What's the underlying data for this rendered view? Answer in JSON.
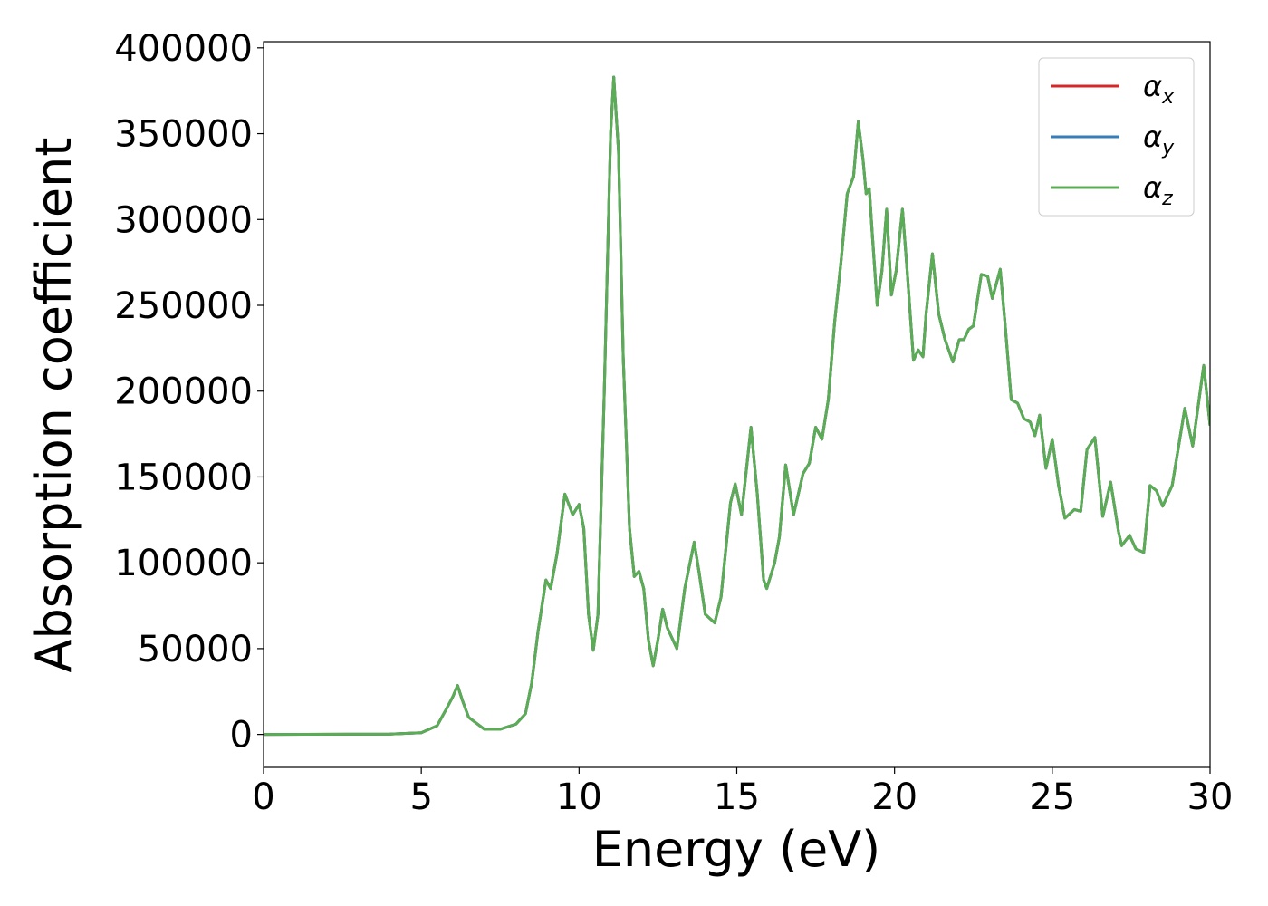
{
  "chart_data": {
    "type": "line",
    "xlabel": "Energy (eV)",
    "ylabel": "Absorption coefficient",
    "xlim": [
      0,
      30
    ],
    "xticks": [
      0,
      5,
      10,
      15,
      20,
      25,
      30
    ],
    "ylim": [
      -19200,
      403600
    ],
    "yticks": [
      0,
      50000,
      100000,
      150000,
      200000,
      250000,
      300000,
      350000,
      400000
    ],
    "grid": false,
    "legend": "upper right",
    "x": [
      0,
      4,
      5,
      5.5,
      5.8,
      6.0,
      6.15,
      6.3,
      6.5,
      7.0,
      7.5,
      8.0,
      8.3,
      8.5,
      8.7,
      8.95,
      9.1,
      9.3,
      9.55,
      9.8,
      10.0,
      10.15,
      10.3,
      10.45,
      10.6,
      10.8,
      11.0,
      11.1,
      11.25,
      11.4,
      11.6,
      11.75,
      11.9,
      12.05,
      12.2,
      12.35,
      12.5,
      12.65,
      12.8,
      13.1,
      13.35,
      13.65,
      13.8,
      14.0,
      14.3,
      14.5,
      14.8,
      14.95,
      15.15,
      15.45,
      15.65,
      15.85,
      15.95,
      16.2,
      16.35,
      16.55,
      16.8,
      17.1,
      17.3,
      17.5,
      17.7,
      17.9,
      18.1,
      18.3,
      18.5,
      18.7,
      18.85,
      19.0,
      19.1,
      19.2,
      19.3,
      19.45,
      19.6,
      19.75,
      19.9,
      20.05,
      20.25,
      20.4,
      20.6,
      20.75,
      20.9,
      21.0,
      21.2,
      21.4,
      21.6,
      21.85,
      22.05,
      22.2,
      22.35,
      22.5,
      22.75,
      22.95,
      23.1,
      23.35,
      23.5,
      23.7,
      23.9,
      24.1,
      24.3,
      24.45,
      24.6,
      24.8,
      25.0,
      25.2,
      25.4,
      25.7,
      25.9,
      26.1,
      26.35,
      26.6,
      26.85,
      27.1,
      27.2,
      27.45,
      27.65,
      27.9,
      28.1,
      28.3,
      28.5,
      28.8,
      29.2,
      29.45,
      29.8,
      30.0
    ],
    "series": [
      {
        "name": "αx",
        "color": "#d62728",
        "values": [
          0,
          200,
          1000,
          5000,
          15000,
          22000,
          28500,
          20000,
          10000,
          3000,
          3000,
          6000,
          12000,
          30000,
          60000,
          90000,
          85000,
          105000,
          140000,
          128000,
          134000,
          120000,
          70000,
          49000,
          70000,
          200000,
          350000,
          383000,
          340000,
          220000,
          120000,
          92000,
          95000,
          85000,
          55000,
          40000,
          55000,
          73000,
          62000,
          50000,
          85000,
          112000,
          95000,
          70000,
          65000,
          80000,
          135000,
          146000,
          128000,
          179000,
          140000,
          90000,
          85000,
          100000,
          115000,
          157000,
          128000,
          152000,
          158000,
          179000,
          172000,
          195000,
          240000,
          275000,
          315000,
          325000,
          357000,
          335000,
          315000,
          318000,
          290000,
          250000,
          270000,
          306000,
          256000,
          270000,
          306000,
          270000,
          218000,
          224000,
          220000,
          245000,
          280000,
          245000,
          230000,
          217000,
          230000,
          230000,
          236000,
          238000,
          268000,
          267000,
          254000,
          271000,
          240000,
          195000,
          193000,
          184000,
          182000,
          174000,
          186000,
          155000,
          172000,
          145000,
          126000,
          131000,
          130000,
          166000,
          173000,
          127000,
          147000,
          118000,
          110000,
          116000,
          108000,
          106000,
          145000,
          142000,
          133000,
          145000,
          190000,
          168000,
          215000,
          180000
        ]
      },
      {
        "name": "αy",
        "color": "#377eb8",
        "values": [
          0,
          200,
          1000,
          5000,
          15000,
          22000,
          28500,
          20000,
          10000,
          3000,
          3000,
          6000,
          12000,
          30000,
          60000,
          90000,
          85000,
          105000,
          140000,
          128000,
          134000,
          120000,
          70000,
          49000,
          70000,
          200000,
          350000,
          383000,
          340000,
          220000,
          120000,
          92000,
          95000,
          85000,
          55000,
          40000,
          55000,
          73000,
          62000,
          50000,
          85000,
          112000,
          95000,
          70000,
          65000,
          80000,
          135000,
          146000,
          128000,
          179000,
          140000,
          90000,
          85000,
          100000,
          115000,
          157000,
          128000,
          152000,
          158000,
          179000,
          172000,
          195000,
          240000,
          275000,
          315000,
          325000,
          357000,
          335000,
          315000,
          318000,
          290000,
          250000,
          270000,
          306000,
          256000,
          270000,
          306000,
          270000,
          218000,
          224000,
          220000,
          245000,
          280000,
          245000,
          230000,
          217000,
          230000,
          230000,
          236000,
          238000,
          268000,
          267000,
          254000,
          271000,
          240000,
          195000,
          193000,
          184000,
          182000,
          174000,
          186000,
          155000,
          172000,
          145000,
          126000,
          131000,
          130000,
          166000,
          173000,
          127000,
          147000,
          118000,
          110000,
          116000,
          108000,
          106000,
          145000,
          142000,
          133000,
          145000,
          190000,
          168000,
          215000,
          180000
        ]
      },
      {
        "name": "αz",
        "color": "#5aac55",
        "values": [
          0,
          200,
          1000,
          5000,
          15000,
          22000,
          28500,
          20000,
          10000,
          3000,
          3000,
          6000,
          12000,
          30000,
          60000,
          90000,
          85000,
          105000,
          140000,
          128000,
          134000,
          120000,
          70000,
          49000,
          70000,
          200000,
          350000,
          383000,
          340000,
          220000,
          120000,
          92000,
          95000,
          85000,
          55000,
          40000,
          55000,
          73000,
          62000,
          50000,
          85000,
          112000,
          95000,
          70000,
          65000,
          80000,
          135000,
          146000,
          128000,
          179000,
          140000,
          90000,
          85000,
          100000,
          115000,
          157000,
          128000,
          152000,
          158000,
          179000,
          172000,
          195000,
          240000,
          275000,
          315000,
          325000,
          357000,
          335000,
          315000,
          318000,
          290000,
          250000,
          270000,
          306000,
          256000,
          270000,
          306000,
          270000,
          218000,
          224000,
          220000,
          245000,
          280000,
          245000,
          230000,
          217000,
          230000,
          230000,
          236000,
          238000,
          268000,
          267000,
          254000,
          271000,
          240000,
          195000,
          193000,
          184000,
          182000,
          174000,
          186000,
          155000,
          172000,
          145000,
          126000,
          131000,
          130000,
          166000,
          173000,
          127000,
          147000,
          118000,
          110000,
          116000,
          108000,
          106000,
          145000,
          142000,
          133000,
          145000,
          190000,
          168000,
          215000,
          180000
        ]
      }
    ]
  }
}
